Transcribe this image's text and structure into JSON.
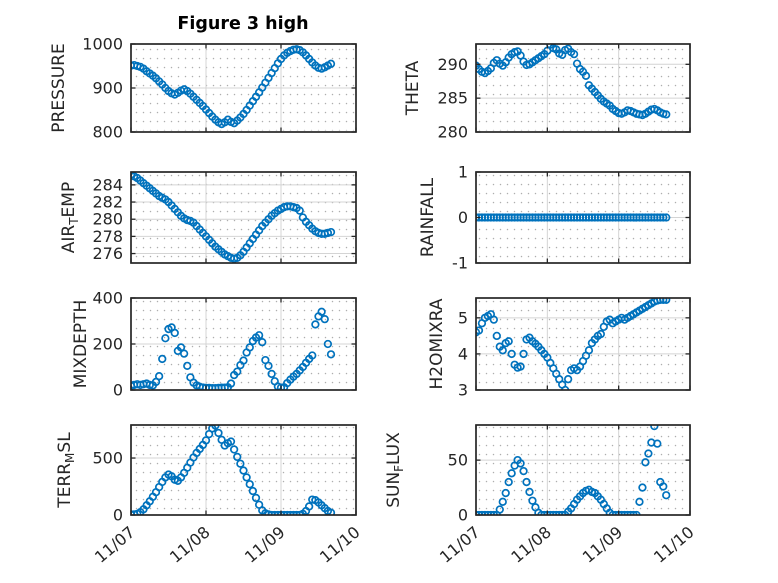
{
  "window": {
    "background": "#ffffff"
  },
  "chart_data": {
    "type": "scatter",
    "title": "Figure 3 high",
    "marker": {
      "style": "open-circle",
      "color": "#0072BD",
      "radius_px": 3.3
    },
    "colors": {
      "marker": "#0072BD",
      "axis": "#262626",
      "grid_major": "#d4d4d4",
      "grid_minor_dot": "#aeaeae",
      "background": "#ffffff",
      "text": "#262626"
    },
    "grid": {
      "major": true,
      "minor": "dotted"
    },
    "x_axis": {
      "tick_labels": [
        "11/07",
        "11/08",
        "11/09",
        "11/10"
      ],
      "range_days": [
        0,
        3
      ],
      "sample_start_hour": 0,
      "sample_step_hours": 1,
      "tick_label_rotation_deg": -40
    },
    "subplots": [
      {
        "id": "PRESSURE",
        "ylabel": {
          "pre": "PRESSURE",
          "sub": "",
          "post": ""
        },
        "ylim": [
          800,
          1000
        ],
        "yticks": [
          800,
          900,
          1000
        ],
        "values": [
          951,
          952,
          950,
          948,
          944,
          938,
          933,
          928,
          922,
          915,
          908,
          900,
          893,
          888,
          885,
          889,
          894,
          897,
          893,
          887,
          880,
          873,
          866,
          859,
          851,
          843,
          835,
          828,
          822,
          818,
          822,
          828,
          823,
          820,
          826,
          833,
          841,
          850,
          860,
          870,
          880,
          890,
          901,
          912,
          923,
          934,
          945,
          956,
          966,
          974,
          980,
          984,
          987,
          988,
          986,
          981,
          974,
          966,
          958,
          951,
          946,
          944,
          947,
          951,
          955
        ]
      },
      {
        "id": "THETA",
        "ylabel": {
          "pre": "THETA",
          "sub": "",
          "post": ""
        },
        "ylim": [
          280,
          293
        ],
        "yticks": [
          280,
          285,
          290
        ],
        "values": [
          289.8,
          289.3,
          288.9,
          288.7,
          289.0,
          289.4,
          290.2,
          290.6,
          290.1,
          289.8,
          290.3,
          291.0,
          291.5,
          291.8,
          291.9,
          291.3,
          290.4,
          289.9,
          290.0,
          290.3,
          290.6,
          290.9,
          291.2,
          291.5,
          292.0,
          292.9,
          292.4,
          292.2,
          291.6,
          291.4,
          292.1,
          292.3,
          291.8,
          291.5,
          290.1,
          289.3,
          288.9,
          288.3,
          286.9,
          286.4,
          285.9,
          285.4,
          284.9,
          284.5,
          284.2,
          283.9,
          283.4,
          283.1,
          282.8,
          282.7,
          282.9,
          283.2,
          283.1,
          282.9,
          282.7,
          282.6,
          282.5,
          282.7,
          283.0,
          283.3,
          283.4,
          283.2,
          282.9,
          282.7,
          282.6
        ]
      },
      {
        "id": "AIR_TEMP",
        "ylabel": {
          "pre": "AIR",
          "sub": "T",
          "post": "EMP"
        },
        "ylim": [
          274.9,
          285.5
        ],
        "yticks": [
          276,
          278,
          280,
          282,
          284
        ],
        "values": [
          285.2,
          285.0,
          284.8,
          284.5,
          284.2,
          283.9,
          283.6,
          283.3,
          283.0,
          282.7,
          282.5,
          282.3,
          282.0,
          281.6,
          281.2,
          280.8,
          280.4,
          280.1,
          279.9,
          279.8,
          279.6,
          279.2,
          278.8,
          278.4,
          278.0,
          277.6,
          277.2,
          276.8,
          276.5,
          276.2,
          275.9,
          275.7,
          275.5,
          275.4,
          275.5,
          275.8,
          276.2,
          276.7,
          277.2,
          277.7,
          278.2,
          278.7,
          279.2,
          279.6,
          280.0,
          280.4,
          280.7,
          281.0,
          281.2,
          281.4,
          281.5,
          281.5,
          281.4,
          281.3,
          281.0,
          280.2,
          279.7,
          279.3,
          278.9,
          278.6,
          278.4,
          278.3,
          278.3,
          278.4,
          278.5
        ]
      },
      {
        "id": "RAINFALL",
        "ylabel": {
          "pre": "RAINFALL",
          "sub": "",
          "post": ""
        },
        "ylim": [
          -1,
          1
        ],
        "yticks": [
          -1,
          0,
          1
        ],
        "values": [
          0,
          0,
          0,
          0,
          0,
          0,
          0,
          0,
          0,
          0,
          0,
          0,
          0,
          0,
          0,
          0,
          0,
          0,
          0,
          0,
          0,
          0,
          0,
          0,
          0,
          0,
          0,
          0,
          0,
          0,
          0,
          0,
          0,
          0,
          0,
          0,
          0,
          0,
          0,
          0,
          0,
          0,
          0,
          0,
          0,
          0,
          0,
          0,
          0,
          0,
          0,
          0,
          0,
          0,
          0,
          0,
          0,
          0,
          0,
          0,
          0,
          0,
          0,
          0,
          0
        ]
      },
      {
        "id": "MIXDEPTH",
        "ylabel": {
          "pre": "MIXDEPTH",
          "sub": "",
          "post": ""
        },
        "ylim": [
          0,
          400
        ],
        "yticks": [
          0,
          200,
          400
        ],
        "values": [
          18,
          22,
          25,
          22,
          25,
          28,
          22,
          20,
          35,
          60,
          135,
          225,
          265,
          272,
          248,
          170,
          185,
          158,
          105,
          55,
          32,
          20,
          14,
          11,
          9,
          9,
          8,
          8,
          9,
          10,
          10,
          12,
          28,
          65,
          80,
          108,
          128,
          163,
          185,
          213,
          228,
          238,
          208,
          130,
          105,
          70,
          38,
          15,
          10,
          12,
          30,
          45,
          58,
          70,
          85,
          100,
          118,
          135,
          150,
          285,
          320,
          340,
          308,
          200,
          155
        ]
      },
      {
        "id": "H2OMIXRA",
        "ylabel": {
          "pre": "H2OMIXRA",
          "sub": "",
          "post": ""
        },
        "ylim": [
          3,
          5.55
        ],
        "yticks": [
          3,
          4,
          5
        ],
        "values": [
          4.6,
          4.65,
          4.85,
          5.0,
          5.05,
          5.1,
          4.95,
          4.5,
          4.2,
          4.1,
          4.3,
          4.35,
          4.0,
          3.7,
          3.62,
          3.65,
          4.0,
          4.4,
          4.45,
          4.35,
          4.28,
          4.2,
          4.1,
          4.0,
          3.9,
          3.75,
          3.6,
          3.45,
          3.3,
          3.15,
          3.0,
          3.3,
          3.55,
          3.6,
          3.55,
          3.65,
          3.8,
          3.95,
          4.1,
          4.3,
          4.4,
          4.5,
          4.55,
          4.75,
          4.9,
          4.95,
          4.85,
          4.9,
          4.95,
          5.0,
          4.95,
          5.0,
          5.05,
          5.1,
          5.15,
          5.2,
          5.25,
          5.3,
          5.35,
          5.4,
          5.45,
          5.48,
          5.5,
          5.5,
          5.5
        ]
      },
      {
        "id": "TERR_MSL",
        "ylabel": {
          "pre": "TERR",
          "sub": "M",
          "post": "SL"
        },
        "ylim": [
          0,
          790
        ],
        "yticks": [
          0,
          500
        ],
        "values": [
          5,
          5,
          10,
          25,
          50,
          85,
          120,
          160,
          200,
          245,
          290,
          330,
          355,
          340,
          310,
          300,
          330,
          370,
          415,
          460,
          505,
          545,
          580,
          615,
          655,
          710,
          760,
          785,
          720,
          660,
          610,
          630,
          645,
          575,
          510,
          450,
          390,
          330,
          270,
          210,
          150,
          90,
          40,
          15,
          5,
          0,
          0,
          0,
          0,
          0,
          0,
          0,
          0,
          0,
          0,
          10,
          35,
          75,
          135,
          130,
          110,
          85,
          60,
          35,
          20
        ]
      },
      {
        "id": "SUN_FLUX",
        "ylabel": {
          "pre": "SUN",
          "sub": "F",
          "post": "LUX"
        },
        "ylim": [
          0,
          82
        ],
        "yticks": [
          0,
          50
        ],
        "values": [
          0,
          0,
          0,
          0,
          0,
          0,
          0,
          0,
          5,
          12,
          20,
          30,
          38,
          45,
          50,
          47,
          40,
          30,
          21,
          13,
          7,
          2,
          0,
          0,
          0,
          0,
          0,
          0,
          0,
          0,
          0,
          3,
          6,
          10,
          14,
          17,
          20,
          22,
          23,
          21,
          20,
          17,
          14,
          10,
          6,
          2,
          0,
          0,
          0,
          0,
          0,
          0,
          0,
          0,
          0,
          12,
          25,
          48,
          56,
          66,
          81,
          65,
          30,
          26,
          18
        ]
      }
    ]
  }
}
